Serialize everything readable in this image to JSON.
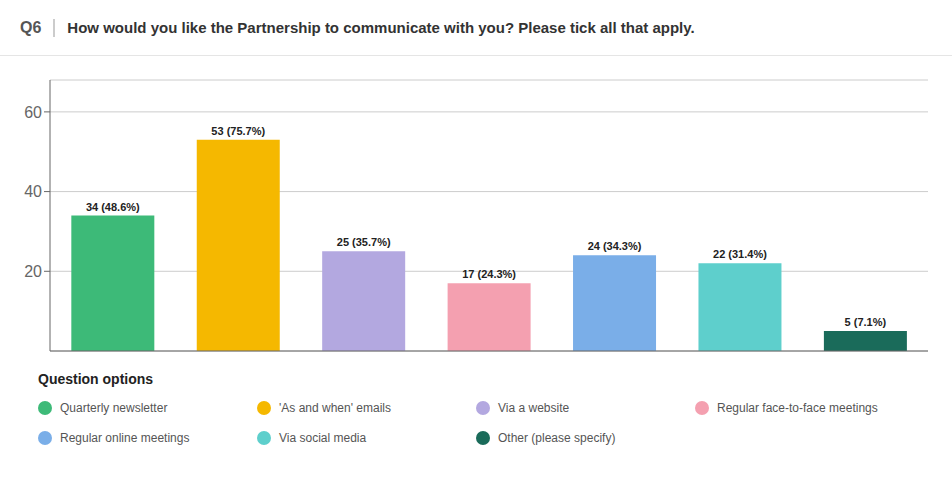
{
  "chart_data": {
    "type": "bar",
    "title": "How would you like the Partnership to communicate with you? Please tick all that apply.",
    "annotations": [
      "Q6"
    ],
    "legend_title": "Question options",
    "categories": [
      "Quarterly newsletter",
      "'As and when' emails",
      "Via a website",
      "Regular face-to-face meetings",
      "Regular online meetings",
      "Via social media",
      "Other (please specify)"
    ],
    "values": [
      34,
      53,
      25,
      17,
      24,
      22,
      5
    ],
    "value_labels": [
      "34 (48.6%)",
      "53 (75.7%)",
      "25 (35.7%)",
      "17 (24.3%)",
      "24 (34.3%)",
      "22 (31.4%)",
      "5 (7.1%)"
    ],
    "colors": [
      "#3dba78",
      "#f5b800",
      "#b3a8e0",
      "#f4a0b0",
      "#7aaee8",
      "#5ecfcc",
      "#1a6b5a"
    ],
    "ylim": [
      0,
      68
    ],
    "yticks": [
      20,
      40,
      60
    ],
    "grid": true,
    "data_labels": true,
    "tick_labels": "y",
    "legend": "bottom"
  }
}
